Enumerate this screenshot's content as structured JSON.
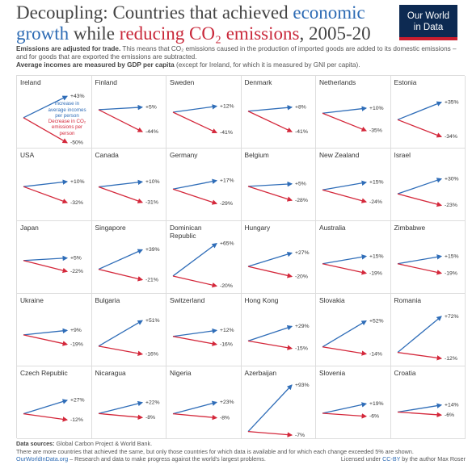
{
  "title": [
    "Decoupling: Countries that achieved ",
    "economic growth",
    " while ",
    "reducing CO₂ emissions",
    ", 2005-20"
  ],
  "logo": "Our World in Data",
  "subtitle": [
    [
      "Emissions are adjusted for trade.",
      " This means that CO₂ emissions caused in the production of imported goods are added to its domestic emissions – and for goods that are exported the emissions are subtracted."
    ],
    [
      "Average incomes are measured by GDP per capita",
      " (except for Ireland, for which it is measured by GNI per capita)."
    ]
  ],
  "footer": {
    "sources": [
      "Data sources:",
      " Global Carbon Project & World Bank."
    ],
    "note": "There are more countries that achieved the same, but only those countries for which data is available and for which each change exceeded 5% are shown.",
    "site": "OurWorldInData.org",
    "tagline": " – Research and data to make progress against the world's largest problems.",
    "license": [
      "Licensed under ",
      "CC-BY",
      " by the author Max Roser"
    ]
  },
  "chart_data": [
    {
      "type": "slope",
      "title": "Ireland",
      "series": [
        {
          "name": "Increase in average incomes per person",
          "color": "#2f6db8",
          "values": [
            43
          ],
          "value_labels": [
            "+43%"
          ]
        },
        {
          "name": "Decrease in CO₂ emissions per person",
          "color": "#d4283b",
          "values": [
            -50
          ],
          "value_labels": [
            "-50%"
          ]
        }
      ]
    },
    {
      "type": "slope",
      "title": "Finland",
      "series": [
        {
          "color": "#2f6db8",
          "values": [
            5
          ],
          "value_labels": [
            "+5%"
          ]
        },
        {
          "color": "#d4283b",
          "values": [
            -44
          ],
          "value_labels": [
            "-44%"
          ]
        }
      ]
    },
    {
      "type": "slope",
      "title": "Sweden",
      "series": [
        {
          "color": "#2f6db8",
          "values": [
            12
          ],
          "value_labels": [
            "+12%"
          ]
        },
        {
          "color": "#d4283b",
          "values": [
            -41
          ],
          "value_labels": [
            "-41%"
          ]
        }
      ]
    },
    {
      "type": "slope",
      "title": "Denmark",
      "series": [
        {
          "color": "#2f6db8",
          "values": [
            8
          ],
          "value_labels": [
            "+8%"
          ]
        },
        {
          "color": "#d4283b",
          "values": [
            -41
          ],
          "value_labels": [
            "-41%"
          ]
        }
      ]
    },
    {
      "type": "slope",
      "title": "Netherlands",
      "series": [
        {
          "color": "#2f6db8",
          "values": [
            10
          ],
          "value_labels": [
            "+10%"
          ]
        },
        {
          "color": "#d4283b",
          "values": [
            -35
          ],
          "value_labels": [
            "-35%"
          ]
        }
      ]
    },
    {
      "type": "slope",
      "title": "Estonia",
      "series": [
        {
          "color": "#2f6db8",
          "values": [
            35
          ],
          "value_labels": [
            "+35%"
          ]
        },
        {
          "color": "#d4283b",
          "values": [
            -34
          ],
          "value_labels": [
            "-34%"
          ]
        }
      ]
    },
    {
      "type": "slope",
      "title": "USA",
      "series": [
        {
          "color": "#2f6db8",
          "values": [
            10
          ],
          "value_labels": [
            "+10%"
          ]
        },
        {
          "color": "#d4283b",
          "values": [
            -32
          ],
          "value_labels": [
            "-32%"
          ]
        }
      ]
    },
    {
      "type": "slope",
      "title": "Canada",
      "series": [
        {
          "color": "#2f6db8",
          "values": [
            10
          ],
          "value_labels": [
            "+10%"
          ]
        },
        {
          "color": "#d4283b",
          "values": [
            -31
          ],
          "value_labels": [
            "-31%"
          ]
        }
      ]
    },
    {
      "type": "slope",
      "title": "Germany",
      "series": [
        {
          "color": "#2f6db8",
          "values": [
            17
          ],
          "value_labels": [
            "+17%"
          ]
        },
        {
          "color": "#d4283b",
          "values": [
            -29
          ],
          "value_labels": [
            "-29%"
          ]
        }
      ]
    },
    {
      "type": "slope",
      "title": "Belgium",
      "series": [
        {
          "color": "#2f6db8",
          "values": [
            5
          ],
          "value_labels": [
            "+5%"
          ]
        },
        {
          "color": "#d4283b",
          "values": [
            -28
          ],
          "value_labels": [
            "-28%"
          ]
        }
      ]
    },
    {
      "type": "slope",
      "title": "New Zealand",
      "series": [
        {
          "color": "#2f6db8",
          "values": [
            15
          ],
          "value_labels": [
            "+15%"
          ]
        },
        {
          "color": "#d4283b",
          "values": [
            -24
          ],
          "value_labels": [
            "-24%"
          ]
        }
      ]
    },
    {
      "type": "slope",
      "title": "Israel",
      "series": [
        {
          "color": "#2f6db8",
          "values": [
            30
          ],
          "value_labels": [
            "+30%"
          ]
        },
        {
          "color": "#d4283b",
          "values": [
            -23
          ],
          "value_labels": [
            "-23%"
          ]
        }
      ]
    },
    {
      "type": "slope",
      "title": "Japan",
      "series": [
        {
          "color": "#2f6db8",
          "values": [
            5
          ],
          "value_labels": [
            "+5%"
          ]
        },
        {
          "color": "#d4283b",
          "values": [
            -22
          ],
          "value_labels": [
            "-22%"
          ]
        }
      ]
    },
    {
      "type": "slope",
      "title": "Singapore",
      "series": [
        {
          "color": "#2f6db8",
          "values": [
            39
          ],
          "value_labels": [
            "+39%"
          ]
        },
        {
          "color": "#d4283b",
          "values": [
            -21
          ],
          "value_labels": [
            "-21%"
          ]
        }
      ]
    },
    {
      "type": "slope",
      "title": "Dominican Republic",
      "series": [
        {
          "color": "#2f6db8",
          "values": [
            65
          ],
          "value_labels": [
            "+65%"
          ]
        },
        {
          "color": "#d4283b",
          "values": [
            -20
          ],
          "value_labels": [
            "-20%"
          ]
        }
      ]
    },
    {
      "type": "slope",
      "title": "Hungary",
      "series": [
        {
          "color": "#2f6db8",
          "values": [
            27
          ],
          "value_labels": [
            "+27%"
          ]
        },
        {
          "color": "#d4283b",
          "values": [
            -20
          ],
          "value_labels": [
            "-20%"
          ]
        }
      ]
    },
    {
      "type": "slope",
      "title": "Australia",
      "series": [
        {
          "color": "#2f6db8",
          "values": [
            15
          ],
          "value_labels": [
            "+15%"
          ]
        },
        {
          "color": "#d4283b",
          "values": [
            -19
          ],
          "value_labels": [
            "-19%"
          ]
        }
      ]
    },
    {
      "type": "slope",
      "title": "Zimbabwe",
      "series": [
        {
          "color": "#2f6db8",
          "values": [
            15
          ],
          "value_labels": [
            "+15%"
          ]
        },
        {
          "color": "#d4283b",
          "values": [
            -19
          ],
          "value_labels": [
            "-19%"
          ]
        }
      ]
    },
    {
      "type": "slope",
      "title": "Ukraine",
      "series": [
        {
          "color": "#2f6db8",
          "values": [
            9
          ],
          "value_labels": [
            "+9%"
          ]
        },
        {
          "color": "#d4283b",
          "values": [
            -19
          ],
          "value_labels": [
            "-19%"
          ]
        }
      ]
    },
    {
      "type": "slope",
      "title": "Bulgaria",
      "series": [
        {
          "color": "#2f6db8",
          "values": [
            51
          ],
          "value_labels": [
            "+51%"
          ]
        },
        {
          "color": "#d4283b",
          "values": [
            -16
          ],
          "value_labels": [
            "-16%"
          ]
        }
      ]
    },
    {
      "type": "slope",
      "title": "Switzerland",
      "series": [
        {
          "color": "#2f6db8",
          "values": [
            12
          ],
          "value_labels": [
            "+12%"
          ]
        },
        {
          "color": "#d4283b",
          "values": [
            -16
          ],
          "value_labels": [
            "-16%"
          ]
        }
      ]
    },
    {
      "type": "slope",
      "title": "Hong Kong",
      "series": [
        {
          "color": "#2f6db8",
          "values": [
            29
          ],
          "value_labels": [
            "+29%"
          ]
        },
        {
          "color": "#d4283b",
          "values": [
            -15
          ],
          "value_labels": [
            "-15%"
          ]
        }
      ]
    },
    {
      "type": "slope",
      "title": "Slovakia",
      "series": [
        {
          "color": "#2f6db8",
          "values": [
            52
          ],
          "value_labels": [
            "+52%"
          ]
        },
        {
          "color": "#d4283b",
          "values": [
            -14
          ],
          "value_labels": [
            "-14%"
          ]
        }
      ]
    },
    {
      "type": "slope",
      "title": "Romania",
      "series": [
        {
          "color": "#2f6db8",
          "values": [
            72
          ],
          "value_labels": [
            "+72%"
          ]
        },
        {
          "color": "#d4283b",
          "values": [
            -12
          ],
          "value_labels": [
            "-12%"
          ]
        }
      ]
    },
    {
      "type": "slope",
      "title": "Czech Republic",
      "series": [
        {
          "color": "#2f6db8",
          "values": [
            27
          ],
          "value_labels": [
            "+27%"
          ]
        },
        {
          "color": "#d4283b",
          "values": [
            -12
          ],
          "value_labels": [
            "-12%"
          ]
        }
      ]
    },
    {
      "type": "slope",
      "title": "Nicaragua",
      "series": [
        {
          "color": "#2f6db8",
          "values": [
            22
          ],
          "value_labels": [
            "+22%"
          ]
        },
        {
          "color": "#d4283b",
          "values": [
            -8
          ],
          "value_labels": [
            "-8%"
          ]
        }
      ]
    },
    {
      "type": "slope",
      "title": "Nigeria",
      "series": [
        {
          "color": "#2f6db8",
          "values": [
            23
          ],
          "value_labels": [
            "+23%"
          ]
        },
        {
          "color": "#d4283b",
          "values": [
            -8
          ],
          "value_labels": [
            "-8%"
          ]
        }
      ]
    },
    {
      "type": "slope",
      "title": "Azerbaijan",
      "series": [
        {
          "color": "#2f6db8",
          "values": [
            93
          ],
          "value_labels": [
            "+93%"
          ]
        },
        {
          "color": "#d4283b",
          "values": [
            -7
          ],
          "value_labels": [
            "-7%"
          ]
        }
      ]
    },
    {
      "type": "slope",
      "title": "Slovenia",
      "series": [
        {
          "color": "#2f6db8",
          "values": [
            19
          ],
          "value_labels": [
            "+19%"
          ]
        },
        {
          "color": "#d4283b",
          "values": [
            -6
          ],
          "value_labels": [
            "-6%"
          ]
        }
      ]
    },
    {
      "type": "slope",
      "title": "Croatia",
      "series": [
        {
          "color": "#2f6db8",
          "values": [
            14
          ],
          "value_labels": [
            "+14%"
          ]
        },
        {
          "color": "#d4283b",
          "values": [
            -6
          ],
          "value_labels": [
            "-6%"
          ]
        }
      ]
    }
  ]
}
